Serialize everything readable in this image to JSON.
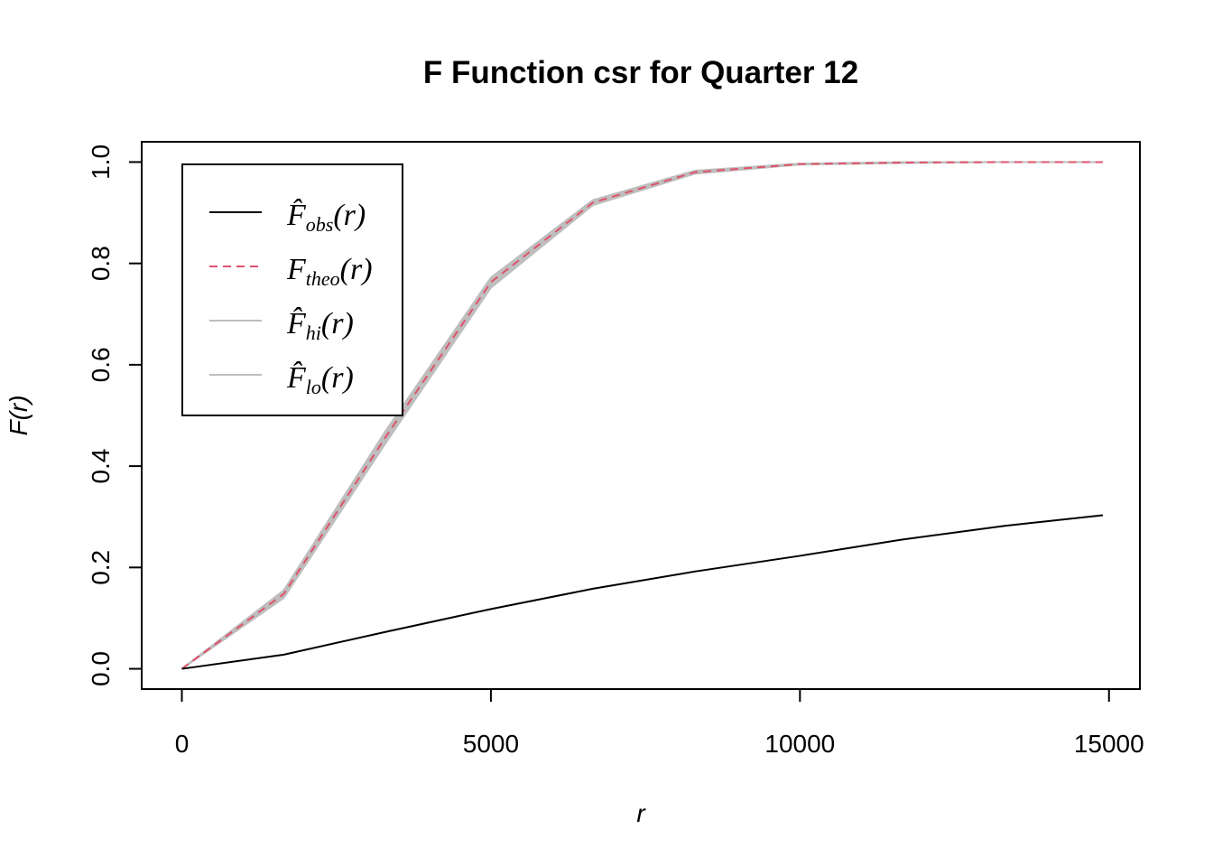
{
  "chart_data": {
    "type": "line",
    "title": "F Function csr for Quarter 12",
    "xlabel": "r",
    "ylabel": "F(r)",
    "xlim": [
      -650,
      15500
    ],
    "ylim": [
      -0.04,
      1.04
    ],
    "x_ticks": [
      0,
      5000,
      10000,
      15000
    ],
    "x_tick_labels": [
      "0",
      "5000",
      "10000",
      "15000"
    ],
    "y_ticks": [
      0.0,
      0.2,
      0.4,
      0.6,
      0.8,
      1.0
    ],
    "y_tick_labels": [
      "0.0",
      "0.2",
      "0.4",
      "0.6",
      "0.8",
      "1.0"
    ],
    "grid": false,
    "legend_position": "top-left",
    "x": [
      0,
      1650,
      3300,
      5000,
      6650,
      8300,
      10000,
      11650,
      13300,
      14900
    ],
    "series": [
      {
        "key": "obs",
        "legend_main": "F̂",
        "legend_sub": "obs",
        "legend_tail": "(r)",
        "color": "#000000",
        "dash": "solid",
        "values": [
          0.0,
          0.028,
          0.073,
          0.118,
          0.158,
          0.192,
          0.223,
          0.255,
          0.282,
          0.303
        ]
      },
      {
        "key": "theo",
        "legend_main": "F",
        "legend_sub": "theo",
        "legend_tail": "(r)",
        "color": "#df536b",
        "dash": "dashed",
        "values": [
          0.0,
          0.148,
          0.458,
          0.763,
          0.92,
          0.98,
          0.996,
          0.999,
          1.0,
          1.0
        ]
      },
      {
        "key": "hi",
        "legend_main": "F̂",
        "legend_sub": "hi",
        "legend_tail": "(r)",
        "color": "#bebebe",
        "dash": "solid",
        "values": [
          0.0,
          0.155,
          0.47,
          0.772,
          0.925,
          0.983,
          0.997,
          1.0,
          1.0,
          1.0
        ]
      },
      {
        "key": "lo",
        "legend_main": "F̂",
        "legend_sub": "lo",
        "legend_tail": "(r)",
        "color": "#bebebe",
        "dash": "solid",
        "values": [
          0.0,
          0.14,
          0.446,
          0.752,
          0.915,
          0.977,
          0.995,
          0.998,
          1.0,
          1.0
        ]
      }
    ]
  }
}
